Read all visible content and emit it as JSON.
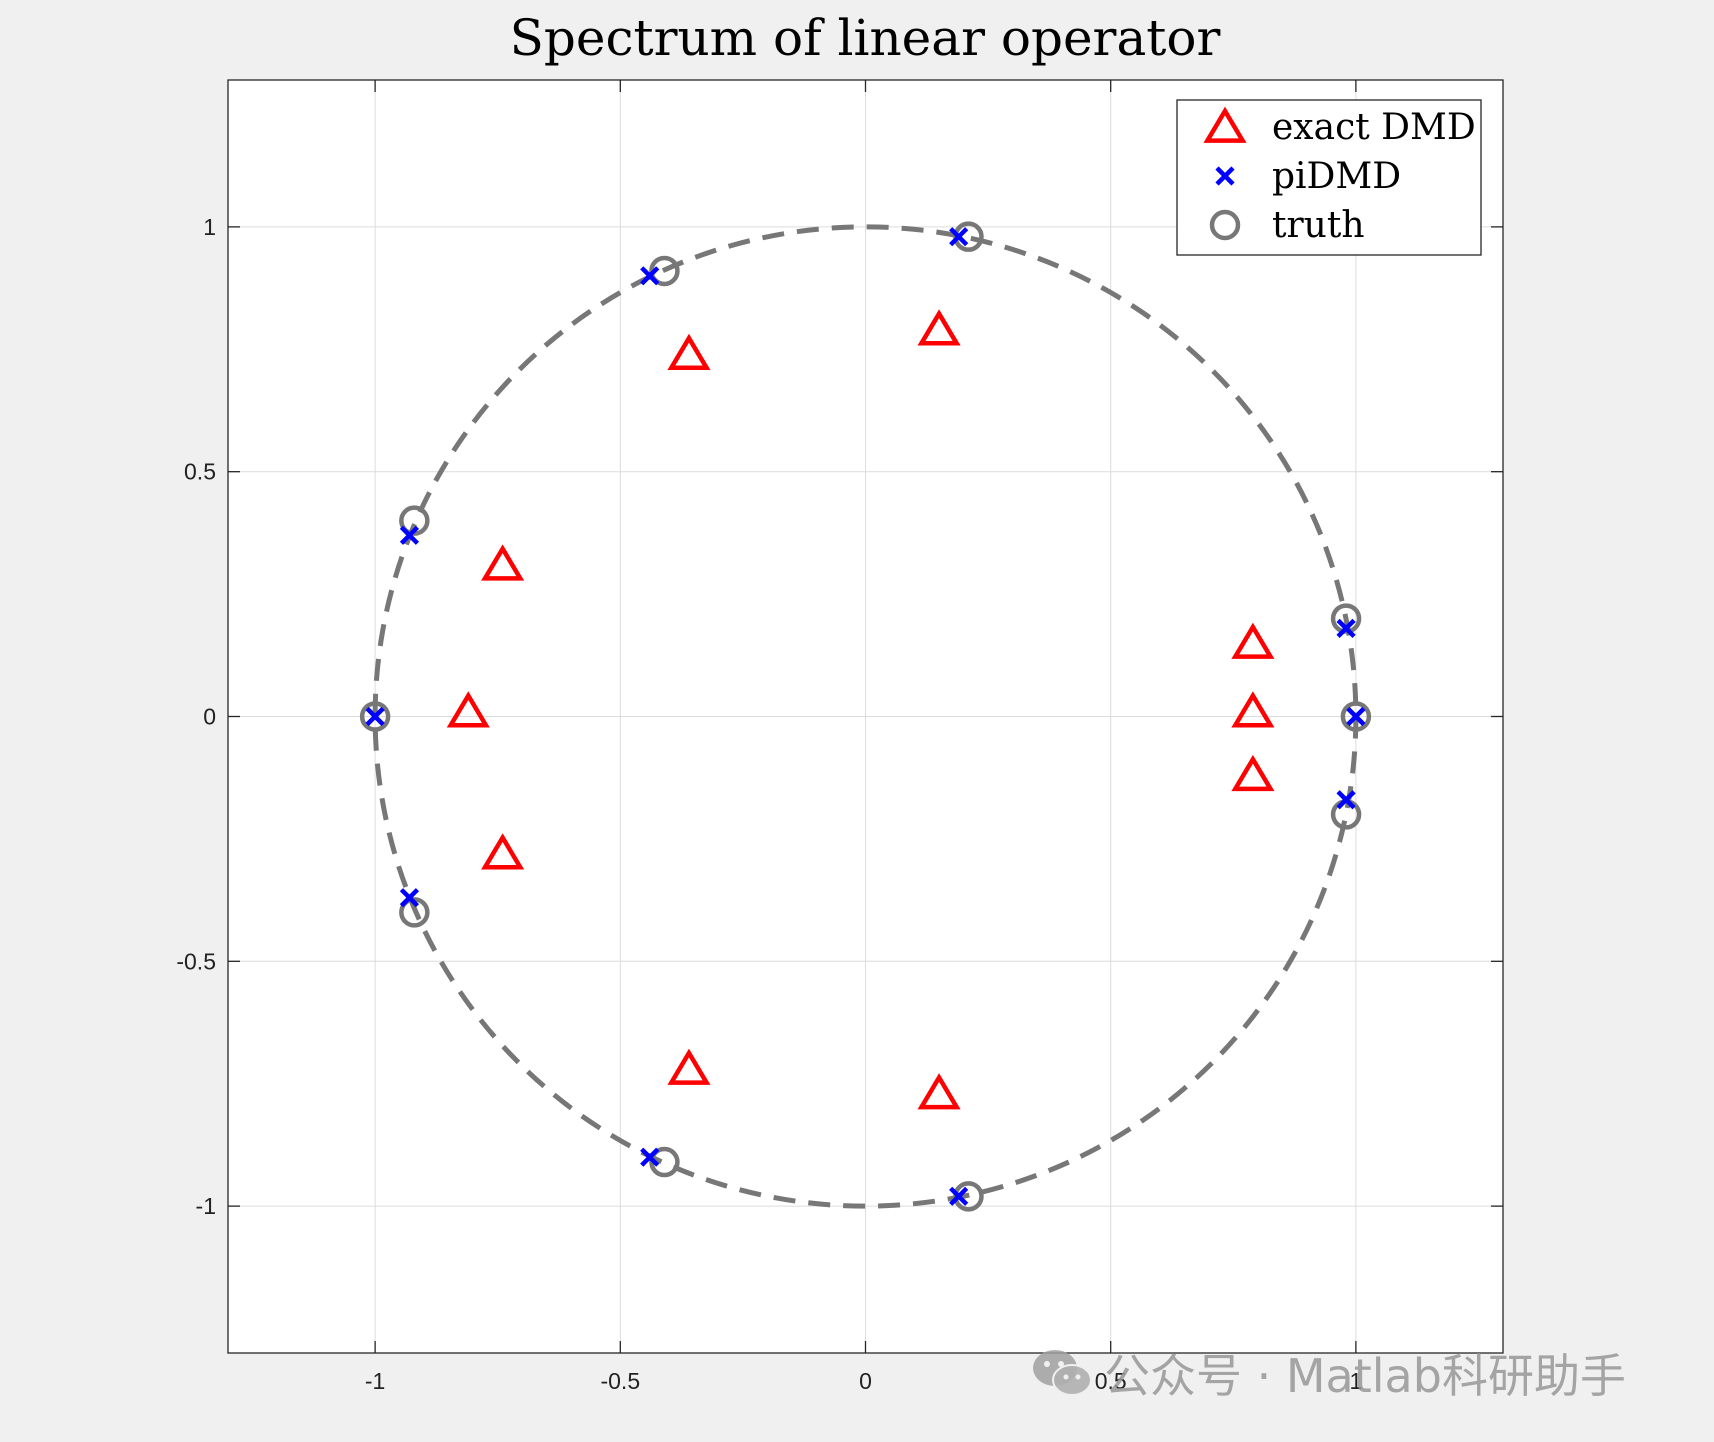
{
  "chart_data": {
    "type": "scatter",
    "title": "Spectrum of linear operator",
    "xlim": [
      -1.3,
      1.3
    ],
    "ylim": [
      -1.3,
      1.3
    ],
    "xticks": [
      -1,
      -0.5,
      0,
      0.5,
      1
    ],
    "xtick_labels": [
      "-1",
      "-0.5",
      "0",
      "0.5",
      "1"
    ],
    "yticks": [
      -1,
      -0.5,
      0,
      0.5,
      1
    ],
    "ytick_labels": [
      "-1",
      "-0.5",
      "0",
      "0.5",
      "1"
    ],
    "grid": true,
    "legend_position": "top-right",
    "reference_curve": {
      "shape": "unit-circle",
      "style": "dashed",
      "color": "#777777"
    },
    "series": [
      {
        "name": "exact DMD",
        "marker": "triangle",
        "color": "#ff0000",
        "points": [
          {
            "x": 0.15,
            "y": 0.79
          },
          {
            "x": 0.15,
            "y": -0.77
          },
          {
            "x": -0.36,
            "y": 0.74
          },
          {
            "x": -0.36,
            "y": -0.72
          },
          {
            "x": -0.74,
            "y": 0.31
          },
          {
            "x": -0.74,
            "y": -0.28
          },
          {
            "x": -0.81,
            "y": 0.01
          },
          {
            "x": 0.79,
            "y": 0.15
          },
          {
            "x": 0.79,
            "y": 0.01
          },
          {
            "x": 0.79,
            "y": -0.12
          }
        ]
      },
      {
        "name": "piDMD",
        "marker": "x",
        "color": "#0000ff",
        "points": [
          {
            "x": 0.19,
            "y": 0.98
          },
          {
            "x": 0.19,
            "y": -0.98
          },
          {
            "x": -0.44,
            "y": 0.9
          },
          {
            "x": -0.44,
            "y": -0.9
          },
          {
            "x": -0.93,
            "y": 0.37
          },
          {
            "x": -0.93,
            "y": -0.37
          },
          {
            "x": -1.0,
            "y": 0.0
          },
          {
            "x": 1.0,
            "y": 0.0
          },
          {
            "x": 0.98,
            "y": 0.18
          },
          {
            "x": 0.98,
            "y": -0.17
          }
        ]
      },
      {
        "name": "truth",
        "marker": "circle",
        "color": "#777777",
        "points": [
          {
            "x": 0.21,
            "y": 0.98
          },
          {
            "x": 0.21,
            "y": -0.98
          },
          {
            "x": -0.41,
            "y": 0.91
          },
          {
            "x": -0.41,
            "y": -0.91
          },
          {
            "x": -0.92,
            "y": 0.4
          },
          {
            "x": -0.92,
            "y": -0.4
          },
          {
            "x": -1.0,
            "y": 0.0
          },
          {
            "x": 1.0,
            "y": 0.0
          },
          {
            "x": 0.98,
            "y": 0.2
          },
          {
            "x": 0.98,
            "y": -0.2
          }
        ]
      }
    ]
  },
  "watermark": "公众号 · Matlab科研助手"
}
